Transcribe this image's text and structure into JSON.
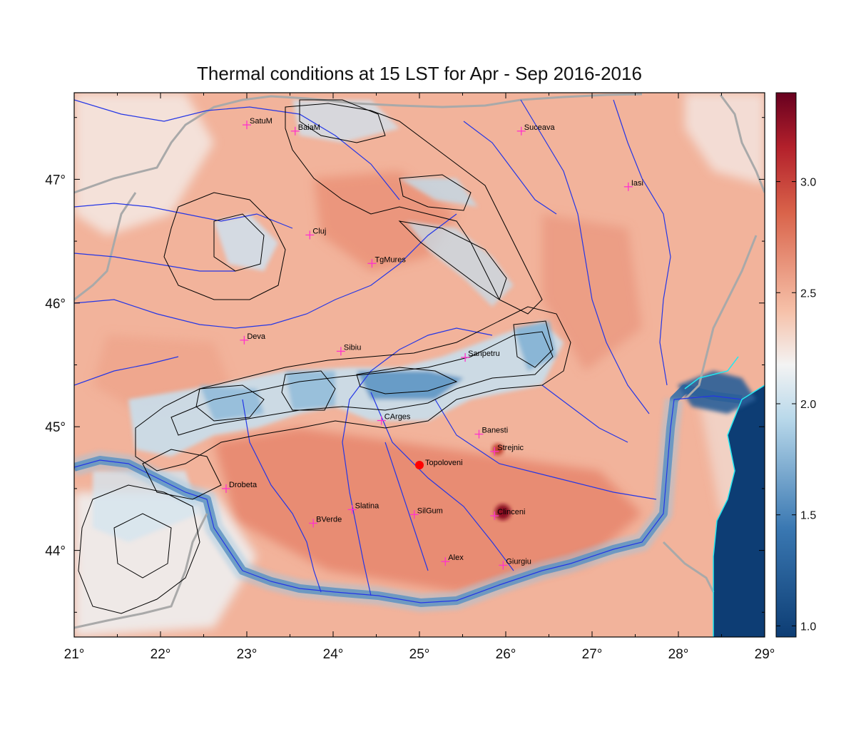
{
  "title": "Thermal conditions at 15 LST for Apr - Sep  2016-2016",
  "map": {
    "lon_range": [
      21,
      29
    ],
    "lat_range": [
      43.3,
      47.7
    ],
    "x_ticks": [
      {
        "value": 21,
        "label": "21°"
      },
      {
        "value": 22,
        "label": "22°"
      },
      {
        "value": 23,
        "label": "23°"
      },
      {
        "value": 24,
        "label": "24°"
      },
      {
        "value": 25,
        "label": "25°"
      },
      {
        "value": 26,
        "label": "26°"
      },
      {
        "value": 27,
        "label": "27°"
      },
      {
        "value": 28,
        "label": "28°"
      },
      {
        "value": 29,
        "label": "29°"
      }
    ],
    "y_ticks": [
      {
        "value": 44,
        "label": "44°"
      },
      {
        "value": 45,
        "label": "45°"
      },
      {
        "value": 46,
        "label": "46°"
      },
      {
        "value": 47,
        "label": "47°"
      }
    ],
    "colors": {
      "cold": "#0d3d74",
      "cool": "#a8cde2",
      "neutral": "#f1f1f0",
      "warm": "#e8957a",
      "hot": "#6a0519",
      "river": "#2436e6",
      "coast": "#23e7f0",
      "border": "#a9a9a9",
      "contour": "#000000",
      "station": "#ff33cc",
      "highlight": "#ff0000"
    }
  },
  "colorbar": {
    "min": 0.95,
    "max": 3.4,
    "ticks": [
      {
        "value": 1.0,
        "label": "1.0"
      },
      {
        "value": 1.5,
        "label": "1.5"
      },
      {
        "value": 2.0,
        "label": "2.0"
      },
      {
        "value": 2.5,
        "label": "2.5"
      },
      {
        "value": 3.0,
        "label": "3.0"
      }
    ]
  },
  "stations": [
    {
      "name": "SatuM",
      "lon": 23.0,
      "lat": 47.44
    },
    {
      "name": "BaiaM",
      "lon": 23.56,
      "lat": 47.39
    },
    {
      "name": "Suceava",
      "lon": 26.18,
      "lat": 47.39
    },
    {
      "name": "Iasi",
      "lon": 27.42,
      "lat": 46.94
    },
    {
      "name": "Cluj",
      "lon": 23.73,
      "lat": 46.55
    },
    {
      "name": "TgMures",
      "lon": 24.45,
      "lat": 46.32
    },
    {
      "name": "Deva",
      "lon": 22.97,
      "lat": 45.7
    },
    {
      "name": "Sibiu",
      "lon": 24.09,
      "lat": 45.61
    },
    {
      "name": "Sanpetru",
      "lon": 25.53,
      "lat": 45.56
    },
    {
      "name": "CArges",
      "lon": 24.56,
      "lat": 45.05
    },
    {
      "name": "Banesti",
      "lon": 25.69,
      "lat": 44.94
    },
    {
      "name": "Strejnic",
      "lon": 25.87,
      "lat": 44.8
    },
    {
      "name": "Drobeta",
      "lon": 22.76,
      "lat": 44.5
    },
    {
      "name": "Slatina",
      "lon": 24.22,
      "lat": 44.33
    },
    {
      "name": "SilGum",
      "lon": 24.94,
      "lat": 44.29
    },
    {
      "name": "Clinceni",
      "lon": 25.87,
      "lat": 44.28
    },
    {
      "name": "BVerde",
      "lon": 23.77,
      "lat": 44.22
    },
    {
      "name": "Alex",
      "lon": 25.3,
      "lat": 43.91
    },
    {
      "name": "Giurgiu",
      "lon": 25.97,
      "lat": 43.88
    }
  ],
  "highlight": {
    "name": "Topoloveni",
    "lon": 25.0,
    "lat": 44.69
  }
}
